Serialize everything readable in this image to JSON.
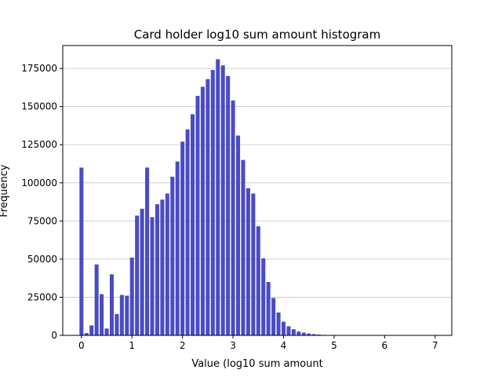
{
  "chart_data": {
    "type": "bar",
    "title": "Card holder log10 sum amount histogram",
    "xlabel": "Value (log10 sum amount",
    "ylabel": "Frequency",
    "xlim": [
      -0.37,
      7.33
    ],
    "ylim": [
      0,
      190000
    ],
    "x_ticks": [
      "0",
      "1",
      "2",
      "3",
      "4",
      "5",
      "6",
      "7"
    ],
    "y_ticks": [
      "0",
      "25000",
      "50000",
      "75000",
      "100000",
      "125000",
      "150000",
      "175000"
    ],
    "grid": "horizontal",
    "bar_color": "#4b4bc4",
    "bin_width": 0.1,
    "x": [
      0.0,
      0.1,
      0.2,
      0.3,
      0.4,
      0.5,
      0.6,
      0.7,
      0.8,
      0.9,
      1.0,
      1.1,
      1.2,
      1.3,
      1.4,
      1.5,
      1.6,
      1.7,
      1.8,
      1.9,
      2.0,
      2.1,
      2.2,
      2.3,
      2.4,
      2.5,
      2.6,
      2.7,
      2.8,
      2.9,
      3.0,
      3.1,
      3.2,
      3.3,
      3.4,
      3.5,
      3.6,
      3.7,
      3.8,
      3.9,
      4.0,
      4.1,
      4.2,
      4.3,
      4.4,
      4.5,
      4.6,
      4.7,
      4.8,
      4.9,
      5.0,
      5.1,
      5.2,
      5.3,
      5.4,
      5.5,
      5.6,
      5.7,
      5.8,
      5.9,
      6.0,
      6.1,
      6.2,
      6.3,
      6.4,
      6.5,
      6.6,
      6.7,
      6.8,
      6.9,
      7.0,
      7.1,
      7.2
    ],
    "values": [
      110000,
      1500,
      6500,
      46500,
      27000,
      4500,
      40000,
      14000,
      26500,
      26000,
      51000,
      78500,
      83000,
      110000,
      77500,
      86000,
      89000,
      93000,
      104000,
      114000,
      127000,
      135000,
      145000,
      157000,
      163000,
      168000,
      174000,
      181000,
      177000,
      170000,
      154000,
      131000,
      115000,
      96500,
      93000,
      71500,
      50500,
      35000,
      24500,
      15000,
      9000,
      6000,
      4000,
      2500,
      1800,
      1200,
      800,
      500,
      300,
      200,
      150,
      100,
      80,
      60,
      50,
      40,
      30,
      25,
      20,
      15,
      12,
      10,
      8,
      6,
      5,
      4,
      3,
      3,
      2,
      2,
      2,
      1,
      1
    ]
  }
}
